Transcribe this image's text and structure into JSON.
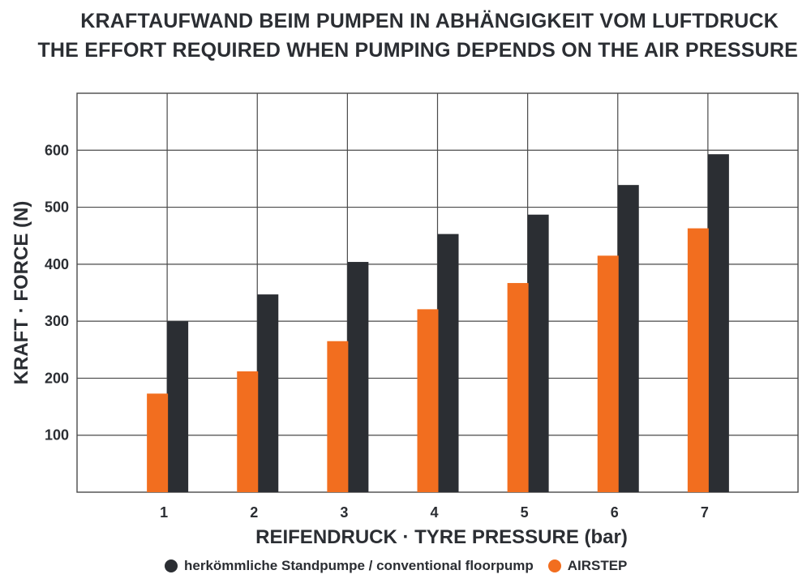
{
  "title_line1": "KRAFTAUFWAND BEIM PUMPEN IN ABHÄNGIGKEIT VOM LUFTDRUCK",
  "title_line2": "THE EFFORT REQUIRED WHEN PUMPING DEPENDS ON THE AIR PRESSURE",
  "colors": {
    "conventional": "#2b2e33",
    "airstep": "#f26e1f",
    "grid": "#4a4a4a"
  },
  "chart_data": {
    "type": "bar",
    "xlabel": "REIFENDRUCK · TYRE PRESSURE (bar)",
    "ylabel": "KRAFT · FORCE (N)",
    "categories": [
      "1",
      "2",
      "3",
      "4",
      "5",
      "6",
      "7"
    ],
    "yticks": [
      100,
      200,
      300,
      400,
      500,
      600
    ],
    "ylim": [
      0,
      700
    ],
    "grid": true,
    "legend_position": "bottom",
    "series": [
      {
        "name": "herkömmliche Standpumpe / conventional floorpump",
        "color": "#2b2e33",
        "values": [
          300,
          347,
          404,
          453,
          487,
          539,
          593
        ]
      },
      {
        "name": "AIRSTEP",
        "color": "#f26e1f",
        "values": [
          173,
          212,
          265,
          321,
          367,
          415,
          463
        ]
      }
    ]
  }
}
